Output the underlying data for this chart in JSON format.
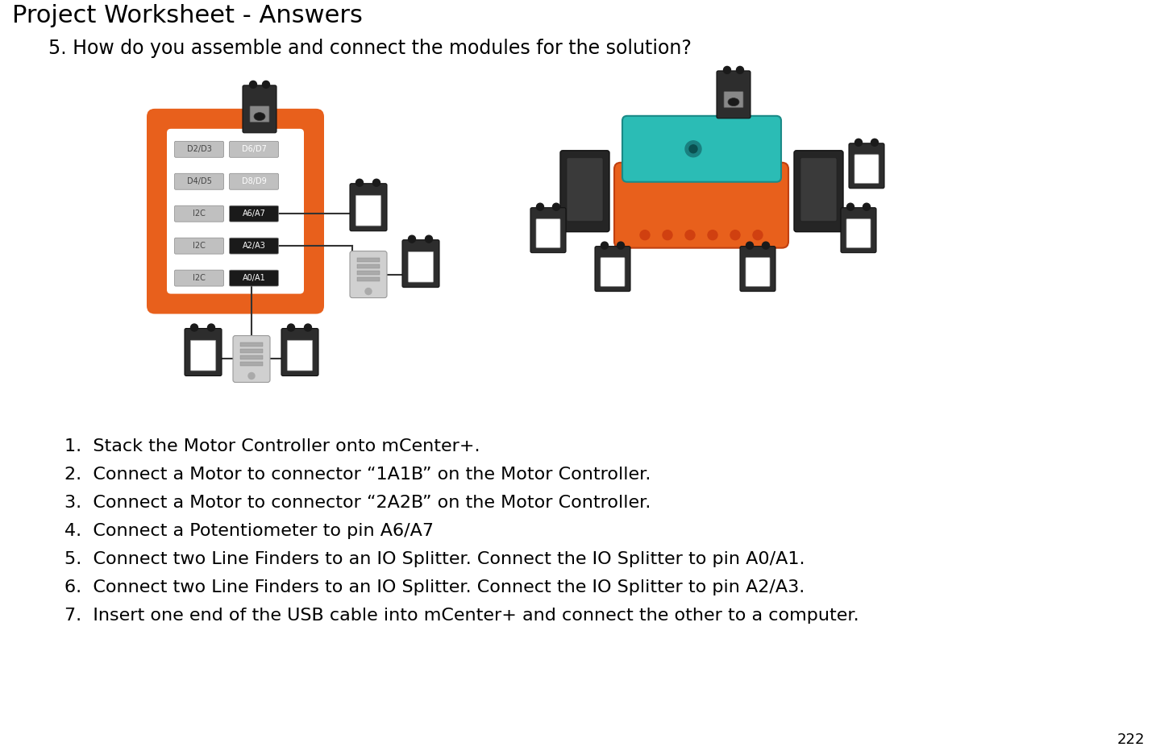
{
  "title": "Project Worksheet - Answers",
  "question": "5. How do you assemble and connect the modules for the solution?",
  "steps": [
    "1.  Stack the Motor Controller onto mCenter+.",
    "2.  Connect a Motor to connector “1A1B” on the Motor Controller.",
    "3.  Connect a Motor to connector “2A2B” on the Motor Controller.",
    "4.  Connect a Potentiometer to pin A6/A7",
    "5.  Connect two Line Finders to an IO Splitter. Connect the IO Splitter to pin A0/A1.",
    "6.  Connect two Line Finders to an IO Splitter. Connect the IO Splitter to pin A2/A3.",
    "7.  Insert one end of the USB cable into mCenter+ and connect the other to a computer."
  ],
  "page_number": "222",
  "bg_color": "#ffffff",
  "title_fontsize": 22,
  "question_fontsize": 17,
  "step_fontsize": 16,
  "title_color": "#000000",
  "step_color": "#000000",
  "orange_color": "#E8601C",
  "dark_module": "#2d2d2d",
  "mid_gray": "#555555",
  "light_gray": "#bbbbbb",
  "splitter_color": "#d0d0d0",
  "line_color": "#333333",
  "pin_dark_bg": "#1a1a1a",
  "pin_light_bg": "#c0c0c0"
}
